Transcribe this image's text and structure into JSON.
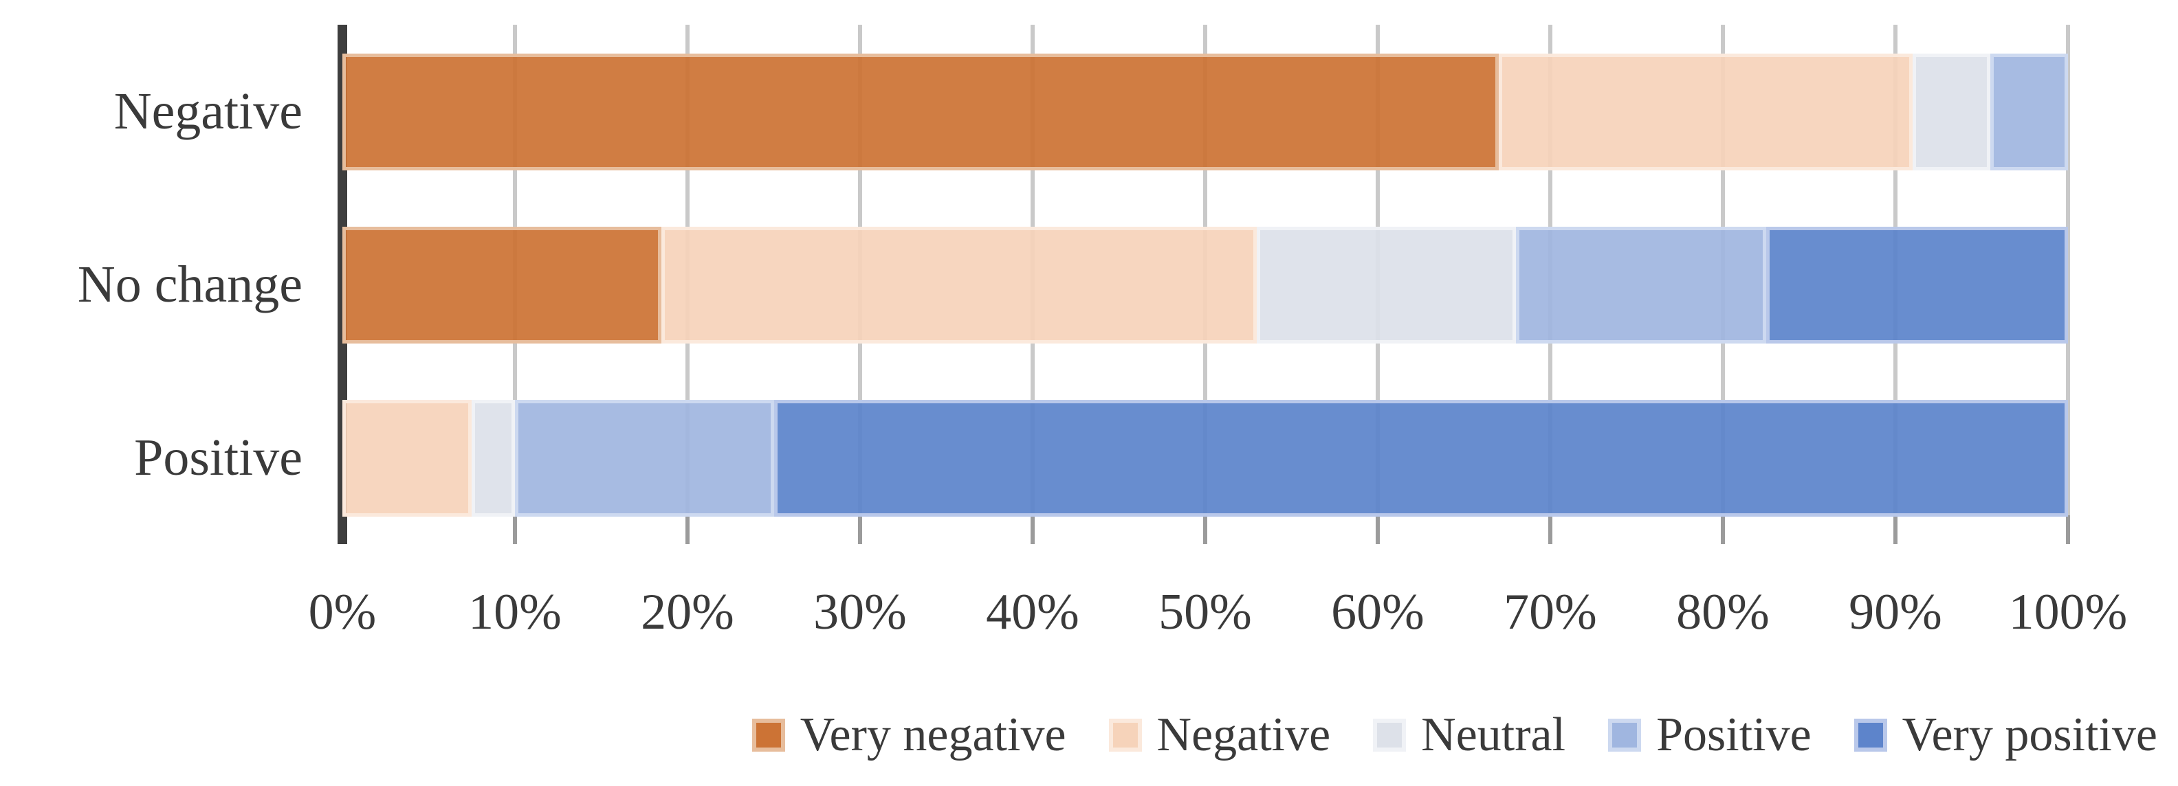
{
  "chart_data": {
    "type": "bar",
    "orientation": "horizontal",
    "stacked": true,
    "stack_total": 100,
    "unit": "%",
    "title": "",
    "xlabel": "",
    "ylabel": "",
    "grid": true,
    "legend_position": "bottom-right",
    "categories": [
      "Negative",
      "No change",
      "Positive"
    ],
    "series": [
      {
        "name": "Very negative",
        "color": "#cc7335",
        "edge_color": "#e7bd9c",
        "values": [
          67,
          18.5,
          0
        ]
      },
      {
        "name": "Negative",
        "color": "#f6d3ba",
        "edge_color": "#fbe9dc",
        "values": [
          24,
          34.5,
          7.5
        ]
      },
      {
        "name": "Neutral",
        "color": "#dde1e9",
        "edge_color": "#f0f2f6",
        "values": [
          4.5,
          15,
          2.5
        ]
      },
      {
        "name": "Positive",
        "color": "#a0b6e0",
        "edge_color": "#cdd9f0",
        "values": [
          4.5,
          14.5,
          15
        ]
      },
      {
        "name": "Very positive",
        "color": "#5d84cb",
        "edge_color": "#b9c8ea",
        "values": [
          0,
          17.5,
          75
        ]
      }
    ],
    "x_axis": {
      "min": 0,
      "max": 100,
      "tick_step": 10,
      "tick_labels": [
        "0%",
        "10%",
        "20%",
        "30%",
        "40%",
        "50%",
        "60%",
        "70%",
        "80%",
        "90%",
        "100%"
      ]
    }
  },
  "style_colors": {
    "axis_line": "#3e3e3e",
    "gridline": "#c9c9c9",
    "tick_mark": "#9b9b9b",
    "text": "#3a3a3a",
    "background": "#ffffff"
  }
}
